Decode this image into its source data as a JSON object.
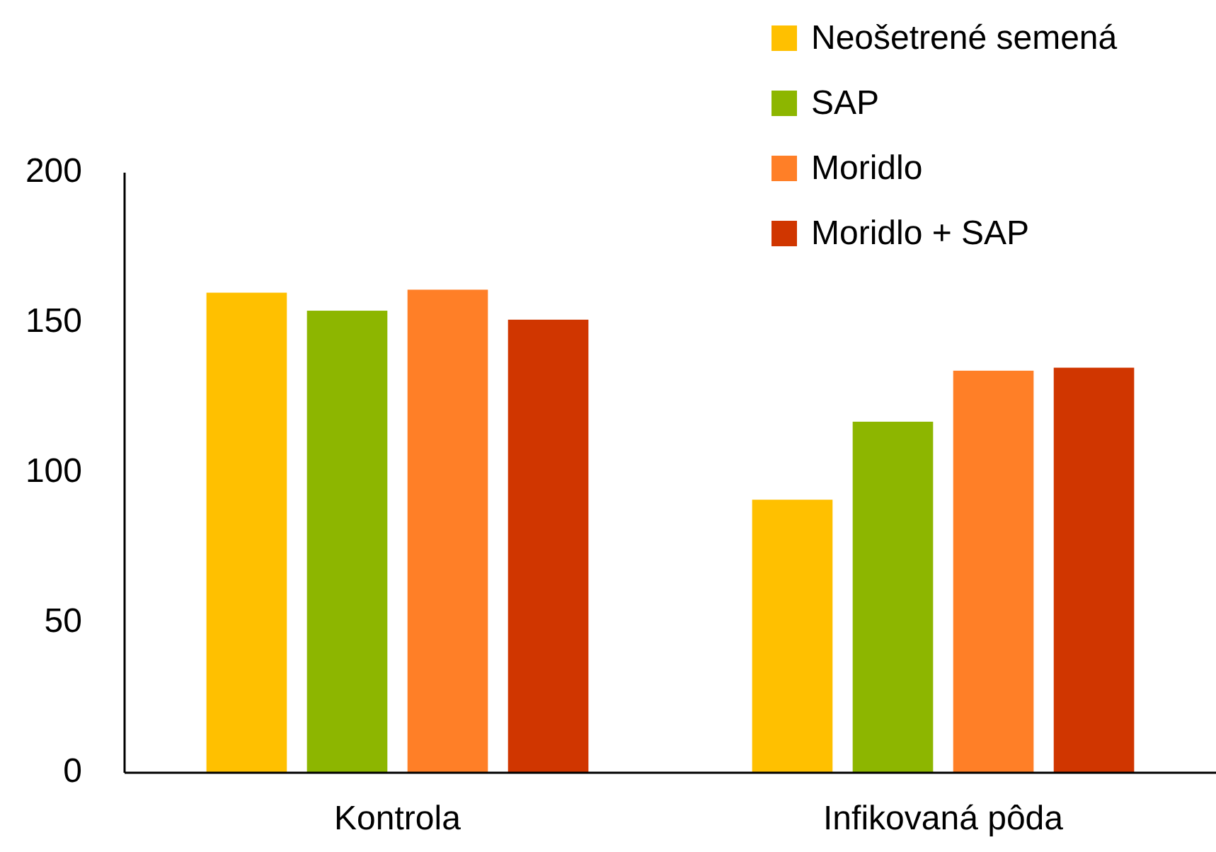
{
  "chart_data": {
    "type": "bar",
    "categories": [
      "Kontrola",
      "Infikovaná pôda"
    ],
    "series": [
      {
        "name": "Neošetrené semená",
        "color": "#ffc000",
        "values": [
          160,
          91
        ]
      },
      {
        "name": "SAP",
        "color": "#8db600",
        "values": [
          154,
          117
        ]
      },
      {
        "name": "Moridlo",
        "color": "#ff7f27",
        "values": [
          161,
          134
        ]
      },
      {
        "name": "Moridlo + SAP",
        "color": "#d03600",
        "values": [
          151,
          135
        ]
      }
    ],
    "ylim": [
      0,
      200
    ],
    "yticks": [
      0,
      50,
      100,
      150,
      200
    ],
    "legend": "top right"
  }
}
